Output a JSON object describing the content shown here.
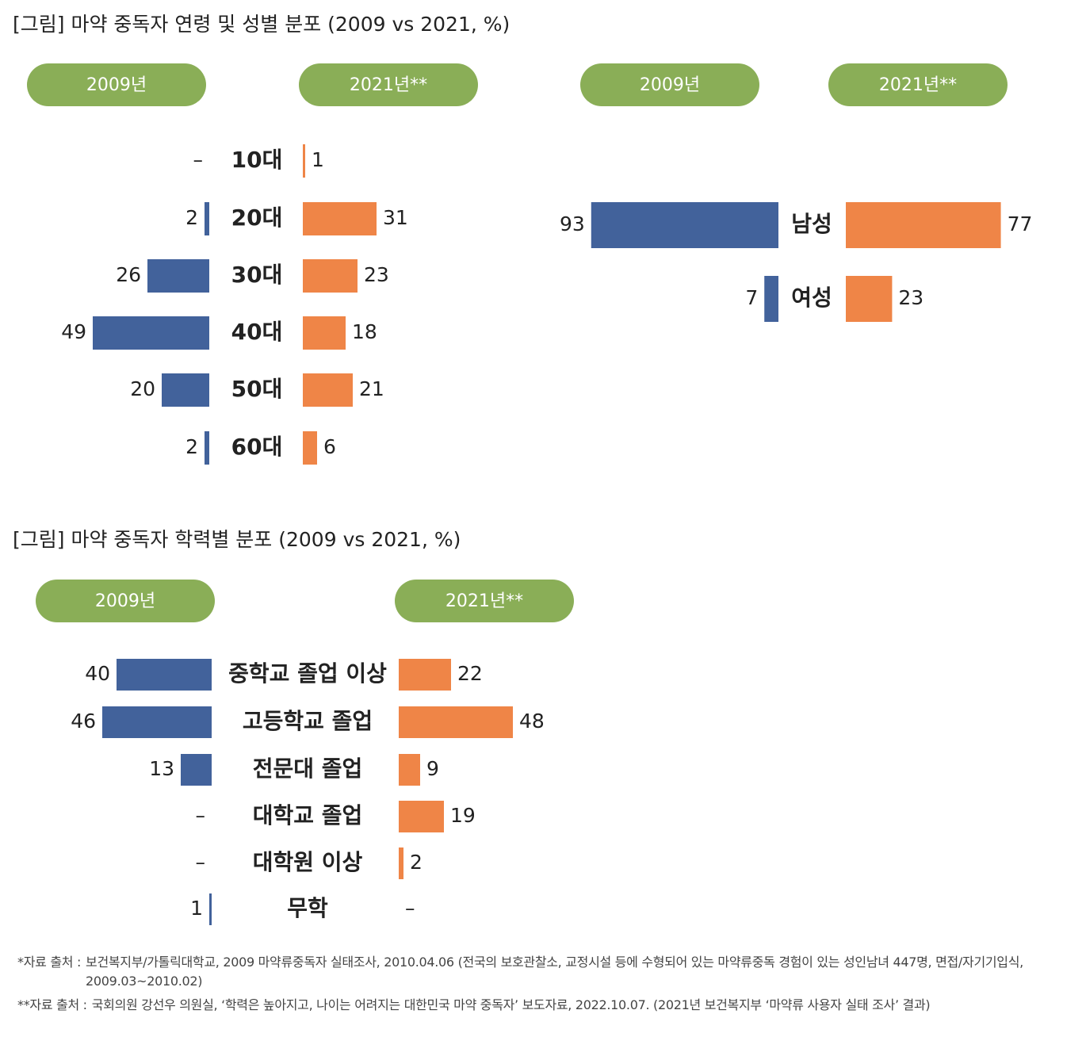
{
  "chart_data": [
    {
      "type": "bar",
      "orientation": "back-to-back",
      "title": "[그림] 마약 중독자 연령 및 성별 분포 (2009 vs 2021, %)",
      "categories": [
        "10대",
        "20대",
        "30대",
        "40대",
        "50대",
        "60대"
      ],
      "xlim": [
        0,
        50
      ],
      "series": [
        {
          "name": "2009년",
          "color": "#42629b",
          "values": [
            null,
            2,
            26,
            49,
            20,
            2
          ],
          "value_labels": [
            "–",
            "2",
            "26",
            "49",
            "20",
            "2"
          ]
        },
        {
          "name": "2021년**",
          "color": "#ef8547",
          "values": [
            1,
            31,
            23,
            18,
            21,
            6
          ],
          "value_labels": [
            "1",
            "31",
            "23",
            "18",
            "21",
            "6"
          ]
        }
      ]
    },
    {
      "type": "bar",
      "orientation": "back-to-back",
      "categories": [
        "남성",
        "여성"
      ],
      "xlim": [
        0,
        100
      ],
      "series": [
        {
          "name": "2009년",
          "color": "#42629b",
          "values": [
            93,
            7
          ]
        },
        {
          "name": "2021년**",
          "color": "#ef8547",
          "values": [
            77,
            23
          ]
        }
      ]
    },
    {
      "type": "bar",
      "orientation": "back-to-back",
      "title": "[그림] 마약 중독자 학력별 분포 (2009 vs 2021, %)",
      "categories": [
        "중학교 졸업 이상",
        "고등학교 졸업",
        "전문대 졸업",
        "대학교 졸업",
        "대학원 이상",
        "무학"
      ],
      "xlim": [
        0,
        50
      ],
      "series": [
        {
          "name": "2009년",
          "color": "#42629b",
          "values": [
            40,
            46,
            13,
            null,
            null,
            1
          ],
          "value_labels": [
            "40",
            "46",
            "13",
            "–",
            "–",
            "1"
          ]
        },
        {
          "name": "2021년**",
          "color": "#ef8547",
          "values": [
            22,
            48,
            9,
            19,
            2,
            null
          ],
          "value_labels": [
            "22",
            "48",
            "9",
            "19",
            "2",
            "–"
          ]
        }
      ]
    }
  ],
  "legend_color": "#8aae57",
  "footnotes": [
    {
      "label": "*자료 출처 :",
      "text": "보건복지부/가톨릭대학교, 2009 마약류중독자 실태조사, 2010.04.06 (전국의 보호관찰소, 교정시설 등에 수형되어 있는 마약류중독 경험이 있는 성인남녀 447명, 면접/자기기입식, 2009.03~2010.02)"
    },
    {
      "label": "**자료 출처 :",
      "text": "국회의원 강선우 의원실, ‘학력은 높아지고, 나이는 어려지는 대한민국 마약 중독자’ 보도자료, 2022.10.07. (2021년 보건복지부 ‘마약류 사용자 실태 조사’ 결과)"
    }
  ]
}
